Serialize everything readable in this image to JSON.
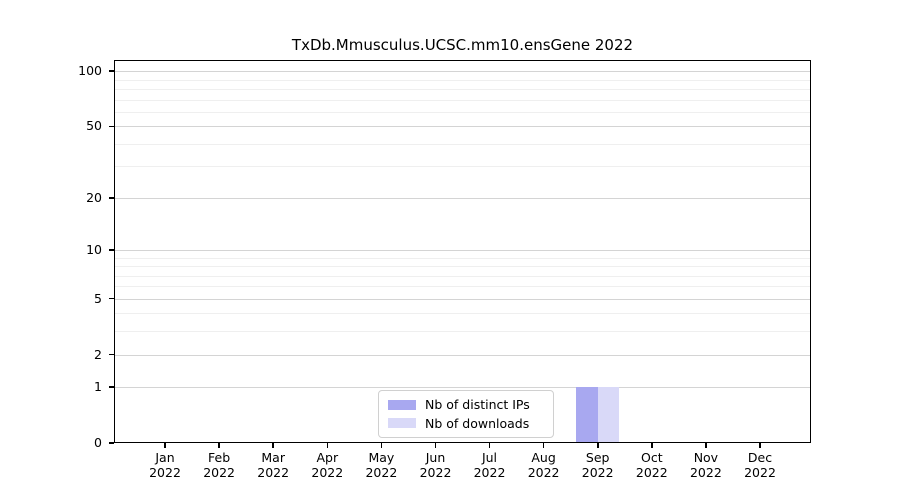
{
  "chart_data": {
    "type": "bar",
    "title": "TxDb.Mmusculus.UCSC.mm10.ensGene 2022",
    "x": {
      "categories": [
        "Jan",
        "Feb",
        "Mar",
        "Apr",
        "May",
        "Jun",
        "Jul",
        "Aug",
        "Sep",
        "Oct",
        "Nov",
        "Dec"
      ],
      "year_label": "2022"
    },
    "series": [
      {
        "name": "Nb of distinct IPs",
        "color": "#a8a8f0",
        "values": [
          0,
          0,
          0,
          0,
          0,
          0,
          0,
          0,
          1,
          0,
          0,
          0
        ]
      },
      {
        "name": "Nb of downloads",
        "color": "#d9d9f8",
        "values": [
          0,
          0,
          0,
          0,
          0,
          0,
          0,
          0,
          1,
          0,
          0,
          0
        ]
      }
    ],
    "yscale": "log1p",
    "ylim": [
      0,
      115
    ],
    "yticks_major": [
      0,
      1,
      2,
      5,
      10,
      20,
      50,
      100
    ],
    "yticks_minor": [
      3,
      4,
      6,
      7,
      8,
      9,
      30,
      40,
      60,
      70,
      80,
      90
    ],
    "grid": "horizontal",
    "legend": {
      "position": "inside-bottom-center",
      "entries": [
        "Nb of distinct IPs",
        "Nb of downloads"
      ]
    },
    "colors": {
      "background": "#ffffff",
      "axis": "#000000",
      "text": "#000000",
      "grid_major": "#d4d4d4",
      "grid_minor": "#efefef",
      "legend_border": "#d0d0d0",
      "bar_distinct_ips": "#a8a8f0",
      "bar_downloads": "#d9d9f8"
    }
  }
}
